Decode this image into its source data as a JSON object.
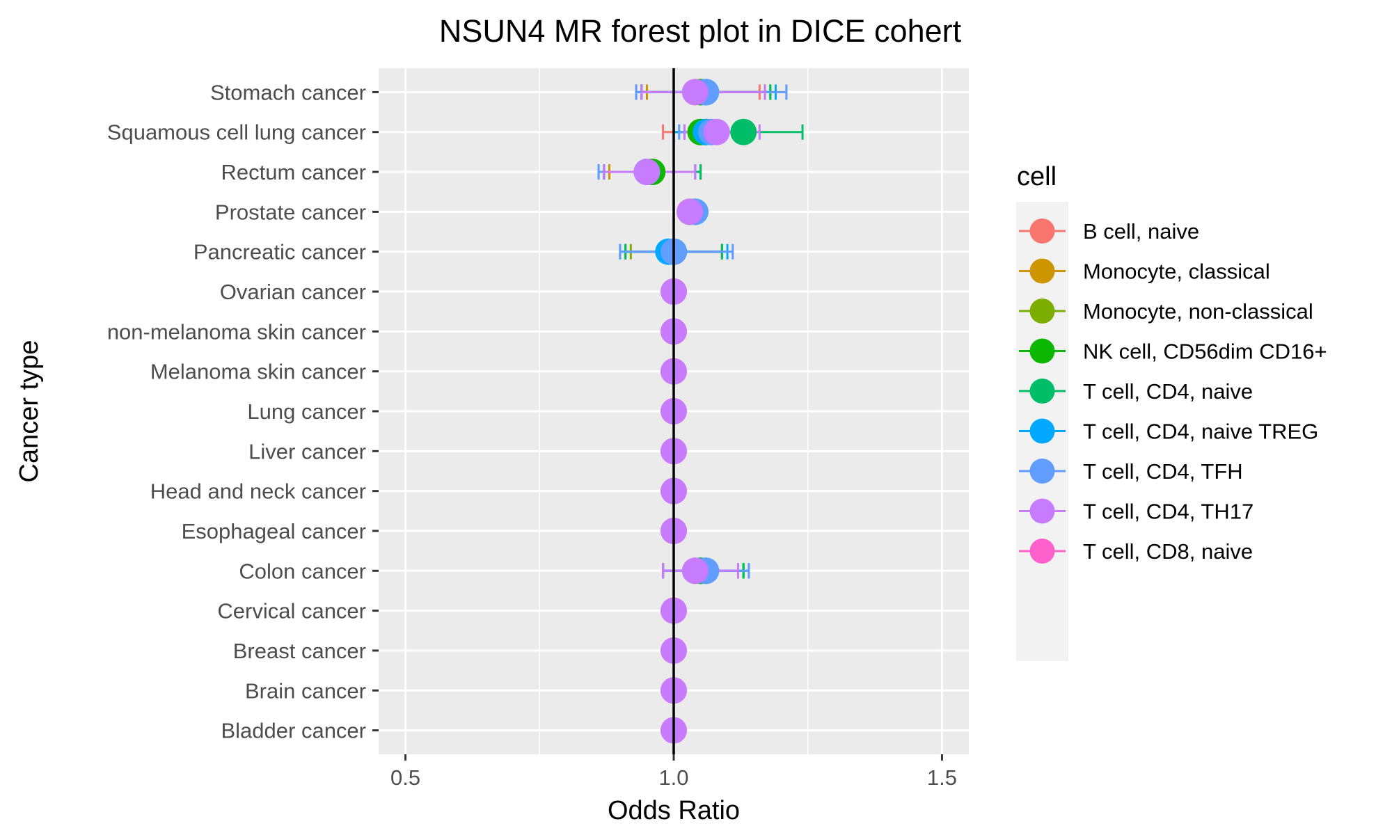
{
  "chart_data": {
    "type": "scatter",
    "title": "NSUN4 MR forest plot in DICE cohert",
    "xlabel": "Odds Ratio",
    "ylabel": "Cancer type",
    "xlim": [
      0.45,
      1.55
    ],
    "xticks": [
      {
        "value": 0.5,
        "label": "0.5"
      },
      {
        "value": 1.0,
        "label": "1.0"
      },
      {
        "value": 1.5,
        "label": "1.5"
      }
    ],
    "x_minor_gridlines": [
      0.75,
      1.25
    ],
    "reference_line": 1.0,
    "grid": true,
    "legend": {
      "title": "cell",
      "position": "right"
    },
    "categories": [
      "Stomach cancer",
      "Squamous cell lung cancer",
      "Rectum cancer",
      "Prostate cancer",
      "Pancreatic cancer",
      "Ovarian cancer",
      "non-melanoma skin cancer",
      "Melanoma skin cancer",
      "Lung cancer",
      "Liver cancer",
      "Head and neck cancer",
      "Esophageal cancer",
      "Colon cancer",
      "Cervical cancer",
      "Breast cancer",
      "Brain cancer",
      "Bladder cancer"
    ],
    "series": [
      {
        "name": "B cell, naive",
        "color": "#F8766D",
        "points": [
          {
            "y": "Stomach cancer",
            "or": 1.04,
            "lo": 0.94,
            "hi": 1.16
          },
          {
            "y": "Squamous cell lung cancer",
            "or": 1.05,
            "lo": 0.98,
            "hi": 1.12
          },
          {
            "y": "Rectum cancer",
            "or": 0.96,
            "lo": 0.88,
            "hi": 1.05
          },
          {
            "y": "Prostate cancer",
            "or": 1.03,
            "lo": 1.02,
            "hi": 1.05
          },
          {
            "y": "Pancreatic cancer",
            "or": 1.0,
            "lo": 0.91,
            "hi": 1.09
          },
          {
            "y": "Ovarian cancer",
            "or": 1.0
          },
          {
            "y": "non-melanoma skin cancer",
            "or": 1.0
          },
          {
            "y": "Melanoma skin cancer",
            "or": 1.0
          },
          {
            "y": "Lung cancer",
            "or": 1.0
          },
          {
            "y": "Liver cancer",
            "or": 1.0
          },
          {
            "y": "Head and neck cancer",
            "or": 1.0
          },
          {
            "y": "Esophageal cancer",
            "or": 1.0
          },
          {
            "y": "Colon cancer",
            "or": 1.04,
            "lo": 0.98,
            "hi": 1.12
          },
          {
            "y": "Cervical cancer",
            "or": 1.0
          },
          {
            "y": "Breast cancer",
            "or": 1.0
          },
          {
            "y": "Brain cancer",
            "or": 1.0
          },
          {
            "y": "Bladder cancer",
            "or": 1.0
          }
        ]
      },
      {
        "name": "Monocyte, classical",
        "color": "#CD9600",
        "points": [
          {
            "y": "Stomach cancer",
            "or": 1.05,
            "lo": 0.95,
            "hi": 1.17
          },
          {
            "y": "Squamous cell lung cancer",
            "or": 1.06,
            "lo": 1.0,
            "hi": 1.13
          },
          {
            "y": "Rectum cancer",
            "or": 0.96,
            "lo": 0.88,
            "hi": 1.05
          },
          {
            "y": "Prostate cancer",
            "or": 1.03,
            "lo": 1.02,
            "hi": 1.05
          },
          {
            "y": "Pancreatic cancer",
            "or": 1.0,
            "lo": 0.91,
            "hi": 1.09
          },
          {
            "y": "Colon cancer",
            "or": 1.05,
            "lo": 0.98,
            "hi": 1.12
          }
        ]
      },
      {
        "name": "Monocyte, non-classical",
        "color": "#7CAE00",
        "points": [
          {
            "y": "Stomach cancer",
            "or": 1.05,
            "lo": 0.94,
            "hi": 1.17
          },
          {
            "y": "Squamous cell lung cancer",
            "or": 1.06,
            "lo": 1.0,
            "hi": 1.13
          },
          {
            "y": "Rectum cancer",
            "or": 0.96,
            "lo": 0.87,
            "hi": 1.05
          },
          {
            "y": "Prostate cancer",
            "or": 1.03,
            "lo": 1.02,
            "hi": 1.05
          },
          {
            "y": "Pancreatic cancer",
            "or": 1.0,
            "lo": 0.92,
            "hi": 1.09
          },
          {
            "y": "Colon cancer",
            "or": 1.05,
            "lo": 0.98,
            "hi": 1.13
          }
        ]
      },
      {
        "name": "NK cell, CD56dim CD16+",
        "color": "#0CB702",
        "points": [
          {
            "y": "Stomach cancer",
            "or": 1.05,
            "lo": 0.94,
            "hi": 1.18
          },
          {
            "y": "Squamous cell lung cancer",
            "or": 1.05,
            "lo": 1.0,
            "hi": 1.12
          },
          {
            "y": "Rectum cancer",
            "or": 0.96,
            "lo": 0.87,
            "hi": 1.05
          },
          {
            "y": "Prostate cancer",
            "or": 1.04,
            "lo": 1.02,
            "hi": 1.05
          },
          {
            "y": "Pancreatic cancer",
            "or": 1.0,
            "lo": 0.91,
            "hi": 1.09
          },
          {
            "y": "Colon cancer",
            "or": 1.05,
            "lo": 0.98,
            "hi": 1.13
          }
        ]
      },
      {
        "name": "T cell, CD4, naive",
        "color": "#00BE67",
        "points": [
          {
            "y": "Stomach cancer",
            "or": 1.06,
            "lo": 0.94,
            "hi": 1.18
          },
          {
            "y": "Squamous cell lung cancer",
            "or": 1.13,
            "lo": 1.02,
            "hi": 1.24
          },
          {
            "y": "Rectum cancer",
            "or": 0.95,
            "lo": 0.87,
            "hi": 1.05
          },
          {
            "y": "Prostate cancer",
            "or": 1.04,
            "lo": 1.02,
            "hi": 1.05
          },
          {
            "y": "Pancreatic cancer",
            "or": 1.0,
            "lo": 0.91,
            "hi": 1.09
          },
          {
            "y": "Colon cancer",
            "or": 1.05,
            "lo": 0.98,
            "hi": 1.13
          }
        ]
      },
      {
        "name": "T cell, CD4, naive TREG",
        "color": "#00A9FF",
        "points": [
          {
            "y": "Stomach cancer",
            "or": 1.06,
            "lo": 0.93,
            "hi": 1.19
          },
          {
            "y": "Squamous cell lung cancer",
            "or": 1.06,
            "lo": 1.0,
            "hi": 1.13
          },
          {
            "y": "Rectum cancer",
            "or": 0.95,
            "lo": 0.86,
            "hi": 1.04
          },
          {
            "y": "Prostate cancer",
            "or": 1.04,
            "lo": 1.02,
            "hi": 1.05
          },
          {
            "y": "Pancreatic cancer",
            "or": 0.99,
            "lo": 0.9,
            "hi": 1.1
          },
          {
            "y": "Colon cancer",
            "or": 1.06,
            "lo": 0.98,
            "hi": 1.14
          }
        ]
      },
      {
        "name": "T cell, CD4, TFH",
        "color": "#619CFF",
        "points": [
          {
            "y": "Stomach cancer",
            "or": 1.06,
            "lo": 0.93,
            "hi": 1.21
          },
          {
            "y": "Squamous cell lung cancer",
            "or": 1.07,
            "lo": 1.01,
            "hi": 1.14
          },
          {
            "y": "Rectum cancer",
            "or": 0.95,
            "lo": 0.86,
            "hi": 1.04
          },
          {
            "y": "Prostate cancer",
            "or": 1.04,
            "lo": 1.02,
            "hi": 1.05
          },
          {
            "y": "Pancreatic cancer",
            "or": 1.0,
            "lo": 0.9,
            "hi": 1.11
          },
          {
            "y": "Colon cancer",
            "or": 1.06,
            "lo": 0.98,
            "hi": 1.14
          }
        ]
      },
      {
        "name": "T cell, CD4, TH17",
        "color": "#C77CFF",
        "points": [
          {
            "y": "Stomach cancer",
            "or": 1.04,
            "lo": 0.94,
            "hi": 1.17
          },
          {
            "y": "Squamous cell lung cancer",
            "or": 1.08,
            "lo": 1.02,
            "hi": 1.16
          },
          {
            "y": "Rectum cancer",
            "or": 0.95,
            "lo": 0.87,
            "hi": 1.04
          },
          {
            "y": "Prostate cancer",
            "or": 1.03,
            "lo": 1.02,
            "hi": 1.05
          },
          {
            "y": "Ovarian cancer",
            "or": 1.0
          },
          {
            "y": "non-melanoma skin cancer",
            "or": 1.0
          },
          {
            "y": "Melanoma skin cancer",
            "or": 1.0
          },
          {
            "y": "Lung cancer",
            "or": 1.0
          },
          {
            "y": "Liver cancer",
            "or": 1.0
          },
          {
            "y": "Head and neck cancer",
            "or": 1.0
          },
          {
            "y": "Esophageal cancer",
            "or": 1.0
          },
          {
            "y": "Colon cancer",
            "or": 1.04,
            "lo": 0.98,
            "hi": 1.12
          },
          {
            "y": "Cervical cancer",
            "or": 1.0
          },
          {
            "y": "Breast cancer",
            "or": 1.0
          },
          {
            "y": "Brain cancer",
            "or": 1.0
          },
          {
            "y": "Bladder cancer",
            "or": 1.0
          }
        ]
      },
      {
        "name": "T cell, CD8, naive",
        "color": "#FF61CC",
        "points": []
      }
    ]
  }
}
